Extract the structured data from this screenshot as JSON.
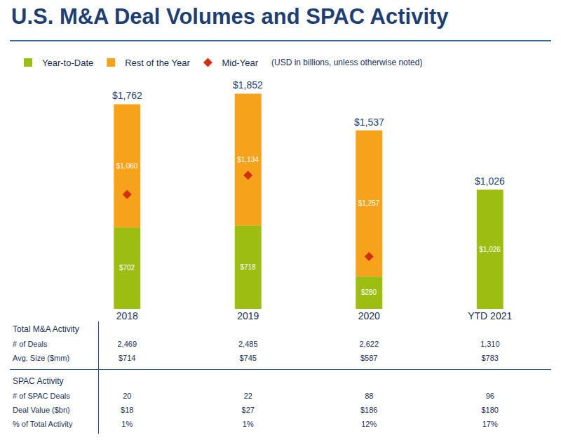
{
  "chart_data": {
    "type": "bar",
    "title": "U.S. M&A Deal Volumes and SPAC Activity",
    "subtitle": "(USD in billions, unless otherwise noted)",
    "categories": [
      "2018",
      "2019",
      "2020",
      "YTD 2021"
    ],
    "series": [
      {
        "name": "Year-to-Date",
        "type": "bar",
        "color": "#9dbd13",
        "values": [
          702,
          718,
          280,
          1026
        ],
        "value_labels": [
          "$702",
          "$718",
          "$280",
          "$1,026"
        ]
      },
      {
        "name": "Rest of the Year",
        "type": "bar",
        "color": "#f7a21b",
        "values": [
          1060,
          1134,
          1257,
          null
        ],
        "value_labels": [
          "$1,060",
          "$1,134",
          "$1,257",
          null
        ]
      },
      {
        "name": "Mid-Year",
        "type": "scatter",
        "marker": "diamond",
        "color": "#d2300f",
        "values": [
          985,
          1150,
          450,
          null
        ]
      }
    ],
    "totals": [
      1762,
      1852,
      1537,
      1026
    ],
    "total_labels": [
      "$1,762",
      "$1,852",
      "$1,537",
      "$1,026"
    ],
    "stacked": true,
    "data_labels": true,
    "legend": "top",
    "grid": false,
    "tick_labels": "x",
    "ylim": [
      0,
      2000
    ]
  },
  "table": {
    "sections": [
      {
        "title": "Total M&A Activity",
        "rows": [
          {
            "label": "# of Deals",
            "cells": [
              "2,469",
              "2,485",
              "2,622",
              "1,310"
            ]
          },
          {
            "label": "Avg. Size ($mm)",
            "cells": [
              "$714",
              "$745",
              "$587",
              "$783"
            ]
          }
        ]
      },
      {
        "title": "SPAC Activity",
        "rows": [
          {
            "label": "# of SPAC Deals",
            "cells": [
              "20",
              "22",
              "88",
              "96"
            ]
          },
          {
            "label": "Deal Value ($bn)",
            "cells": [
              "$18",
              "$27",
              "$186",
              "$180"
            ]
          },
          {
            "label": "% of Total Activity",
            "cells": [
              "1%",
              "1%",
              "12%",
              "17%"
            ]
          }
        ]
      }
    ]
  }
}
